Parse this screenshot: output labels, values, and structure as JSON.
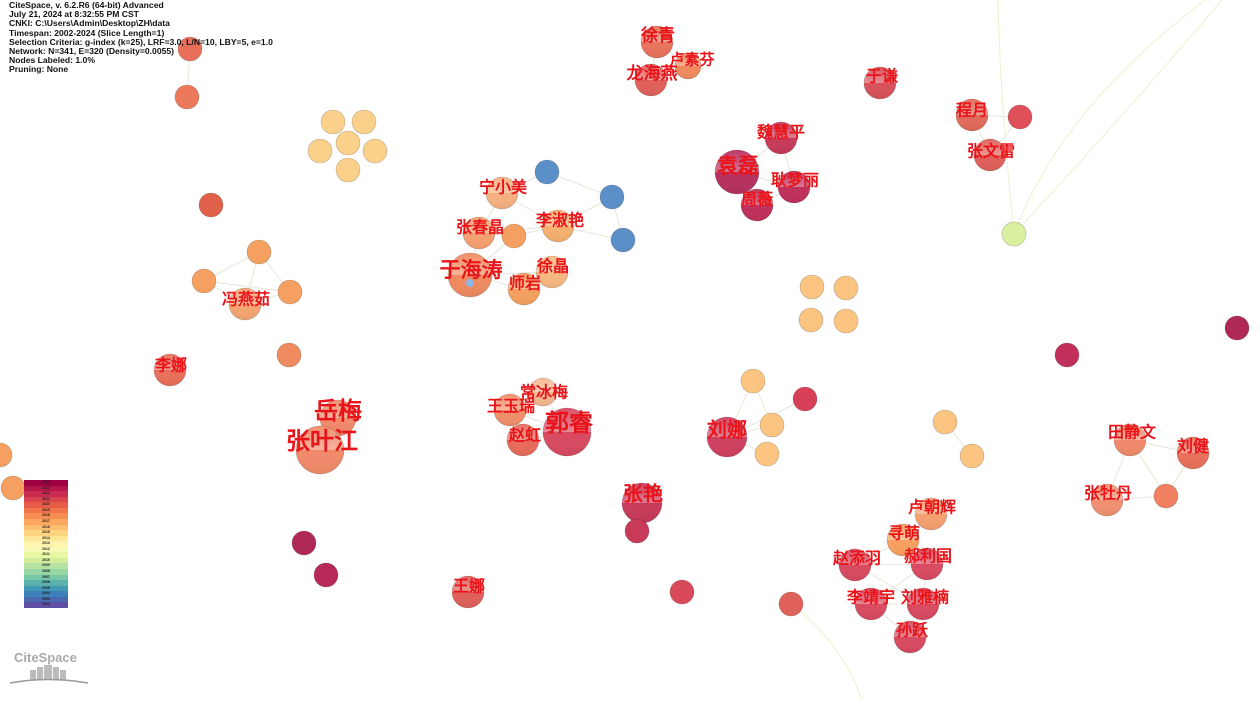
{
  "info": [
    "CiteSpace, v. 6.2.R6 (64-bit) Advanced",
    "July 21, 2024 at 8:32:55 PM CST",
    "CNKI: C:\\Users\\Admin\\Desktop\\ZH\\data",
    "Timespan: 2002-2024 (Slice Length=1)",
    "Selection Criteria: g-index (k=25), LRF=3.0, L/N=10, LBY=5, e=1.0",
    "Network: N=341, E=320 (Density=0.0055)",
    "Nodes Labeled: 1.0%",
    "Pruning: None"
  ],
  "legend": {
    "years": [
      "2024",
      "2023",
      "2022",
      "2021",
      "2020",
      "2019",
      "2018",
      "2017",
      "2016",
      "2015",
      "2014",
      "2013",
      "2012",
      "2011",
      "2010",
      "2009",
      "2008",
      "2007",
      "2006",
      "2005",
      "2004",
      "2003",
      "2002"
    ],
    "colors": [
      "#9e0142",
      "#b3174a",
      "#c92a4f",
      "#d8434e",
      "#e65c49",
      "#f1744a",
      "#f68d52",
      "#faa75d",
      "#fdbf6f",
      "#fed481",
      "#fee797",
      "#fef4ad",
      "#f7fab4",
      "#e9f6a2",
      "#d3ed9c",
      "#b6e2a1",
      "#96d5a4",
      "#77c7a5",
      "#5ab2ab",
      "#4399b4",
      "#3e81b8",
      "#4a68ae",
      "#5e4fa2"
    ]
  },
  "logo": "CiteSpace",
  "nodes": [
    {
      "label": "徐青",
      "color": "#e8735a"
    },
    {
      "label": "卢素芬",
      "color": "#f08a5d"
    },
    {
      "label": "龙海燕",
      "color": "#e0605a"
    },
    {
      "label": "于谦",
      "color": "#d8505a"
    },
    {
      "label": "程月",
      "color": "#e06a5a"
    },
    {
      "label": "",
      "color": "#e0505a"
    },
    {
      "label": "张文雷",
      "color": "#e0605a"
    },
    {
      "label": "魏慧平",
      "color": "#c83a5a"
    },
    {
      "label": "袁磊",
      "color": "#b83060"
    },
    {
      "label": "耿梦丽",
      "color": "#c0305a"
    },
    {
      "label": "周薇",
      "color": "#c0305a"
    },
    {
      "label": "",
      "color": "#d8f0a0"
    },
    {
      "label": "宁小美",
      "color": "#f5b080"
    },
    {
      "label": "",
      "color": "#5b8fc8"
    },
    {
      "label": "",
      "color": "#5b8fc8"
    },
    {
      "label": "",
      "color": "#5b8fc8"
    },
    {
      "label": "张春晶",
      "color": "#f5a070"
    },
    {
      "label": "",
      "color": "#f5a060"
    },
    {
      "label": "李淑艳",
      "color": "#f5b070"
    },
    {
      "label": "于海涛",
      "color": "#f08a60"
    },
    {
      "label": "徐晶",
      "color": "#f8b880"
    },
    {
      "label": "师岩",
      "color": "#f5a060"
    },
    {
      "label": "",
      "color": "#fbd08a"
    },
    {
      "label": "",
      "color": "#fbd08a"
    },
    {
      "label": "",
      "color": "#fbd08a"
    },
    {
      "label": "",
      "color": "#fbd08a"
    },
    {
      "label": "",
      "color": "#fbd08a"
    },
    {
      "label": "",
      "color": "#fbd08a"
    },
    {
      "label": "冯燕茹",
      "color": "#f5a570"
    },
    {
      "label": "",
      "color": "#f5a060"
    },
    {
      "label": "",
      "color": "#f5a060"
    },
    {
      "label": "",
      "color": "#f5a060"
    },
    {
      "label": "",
      "color": "#f08a60"
    },
    {
      "label": "李娜",
      "color": "#e8705a"
    },
    {
      "label": "",
      "color": "#e8705a"
    },
    {
      "label": "",
      "color": "#ec7a5a"
    },
    {
      "label": "",
      "color": "#e0604a"
    },
    {
      "label": "岳梅",
      "color": "#f08a6a"
    },
    {
      "label": "张叶江",
      "color": "#f08a6a"
    },
    {
      "label": "常冰梅",
      "color": "#f8b890"
    },
    {
      "label": "王玉瑞",
      "color": "#f0906a"
    },
    {
      "label": "赵虹",
      "color": "#e86a5a"
    },
    {
      "label": "郭睿",
      "color": "#d84a60"
    },
    {
      "label": "",
      "color": "#fbc480"
    },
    {
      "label": "",
      "color": "#fbc480"
    },
    {
      "label": "",
      "color": "#fbc480"
    },
    {
      "label": "",
      "color": "#fbc480"
    },
    {
      "label": "刘娜",
      "color": "#d04060"
    },
    {
      "label": "",
      "color": "#fbc480"
    },
    {
      "label": "",
      "color": "#fbc480"
    },
    {
      "label": "",
      "color": "#fbc480"
    },
    {
      "label": "",
      "color": "#d8405a"
    },
    {
      "label": "",
      "color": "#fbc480"
    },
    {
      "label": "",
      "color": "#fbc480"
    },
    {
      "label": "",
      "color": "#c0305a"
    },
    {
      "label": "",
      "color": "#b02858"
    },
    {
      "label": "田静文",
      "color": "#f08a6a"
    },
    {
      "label": "刘健",
      "color": "#e8705a"
    },
    {
      "label": "张牡丹",
      "color": "#f09070"
    },
    {
      "label": "",
      "color": "#f08060"
    },
    {
      "label": "张艳",
      "color": "#c83a5a"
    },
    {
      "label": "",
      "color": "#c83a5a"
    },
    {
      "label": "",
      "color": "#b02858"
    },
    {
      "label": "",
      "color": "#b82858"
    },
    {
      "label": "王娜",
      "color": "#e0605a"
    },
    {
      "label": "",
      "color": "#d84a5a"
    },
    {
      "label": "",
      "color": "#e0605a"
    },
    {
      "label": "卢朝辉",
      "color": "#f5a070"
    },
    {
      "label": "寻萌",
      "color": "#f8a060"
    },
    {
      "label": "赵添羽",
      "color": "#d84a60"
    },
    {
      "label": "郝利国",
      "color": "#d84a60"
    },
    {
      "label": "李靖宇",
      "color": "#d84a60"
    },
    {
      "label": "刘雅楠",
      "color": "#d84a60"
    },
    {
      "label": "孙跃",
      "color": "#d84a60"
    },
    {
      "label": "",
      "color": "#f5a060"
    },
    {
      "label": "",
      "color": "#f5a060"
    }
  ]
}
